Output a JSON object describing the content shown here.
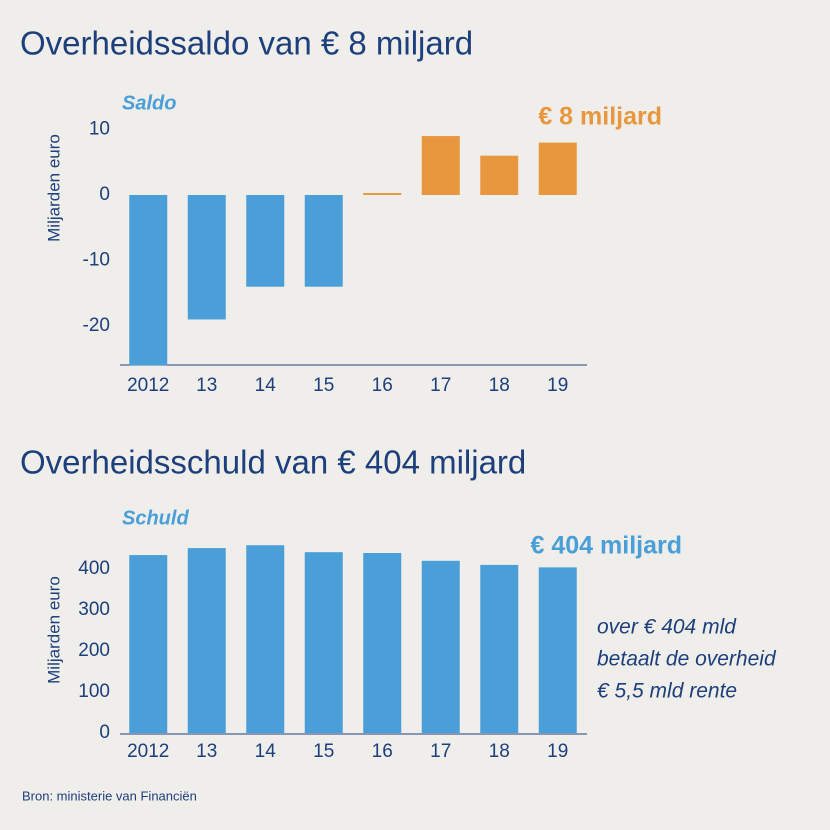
{
  "chart_data": [
    {
      "type": "bar",
      "title": "Overheidssaldo van € 8 miljard",
      "subtitle": "Saldo",
      "y_label": "Miljarden euro",
      "highlight": "€ 8 miljard",
      "highlight_color": "#e8973e",
      "categories": [
        "2012",
        "13",
        "14",
        "15",
        "16",
        "17",
        "18",
        "19"
      ],
      "values": [
        -26,
        -19,
        -14,
        -14,
        0.3,
        9,
        6,
        8
      ],
      "colors": [
        "#4a9fd8",
        "#4a9fd8",
        "#4a9fd8",
        "#4a9fd8",
        "#e8973e",
        "#e8973e",
        "#e8973e",
        "#e8973e"
      ],
      "ylim": [
        -26,
        12
      ],
      "yticks": [
        -20,
        -10,
        0,
        10
      ]
    },
    {
      "type": "bar",
      "title": "Overheidsschuld van € 404 miljard",
      "subtitle": "Schuld",
      "y_label": "Miljarden euro",
      "highlight": "€ 404 miljard",
      "highlight_color": "#4a9fd8",
      "categories": [
        "2012",
        "13",
        "14",
        "15",
        "16",
        "17",
        "18",
        "19"
      ],
      "values": [
        434,
        451,
        458,
        441,
        439,
        420,
        410,
        404
      ],
      "colors": [
        "#4a9fd8",
        "#4a9fd8",
        "#4a9fd8",
        "#4a9fd8",
        "#4a9fd8",
        "#4a9fd8",
        "#4a9fd8",
        "#4a9fd8"
      ],
      "ylim": [
        0,
        460
      ],
      "yticks": [
        0,
        100,
        200,
        300,
        400
      ],
      "annotation": [
        "over € 404 mld",
        "betaalt de overheid",
        "€ 5,5 mld rente"
      ]
    }
  ],
  "source": "Bron: ministerie van Financiën"
}
